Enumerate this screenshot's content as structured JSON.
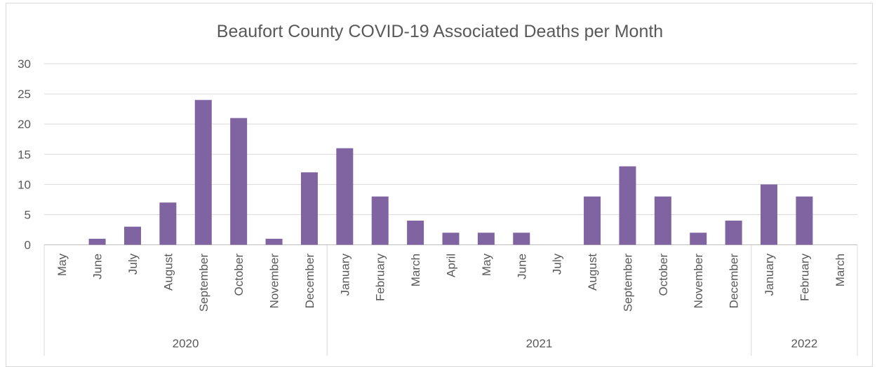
{
  "chart_data": {
    "type": "bar",
    "title": "Beaufort County COVID-19 Associated Deaths per Month",
    "xlabel": "",
    "ylabel": "",
    "ylim": [
      0,
      30
    ],
    "yticks": [
      "0",
      "5",
      "10",
      "15",
      "20",
      "25",
      "30"
    ],
    "grid": true,
    "legend": "none",
    "bar_color": "#8064a2",
    "categories": [
      "May",
      "June",
      "July",
      "August",
      "September",
      "October",
      "November",
      "December",
      "January",
      "February",
      "March",
      "April",
      "May",
      "June",
      "July",
      "August",
      "September",
      "October",
      "November",
      "December",
      "January",
      "February",
      "March"
    ],
    "years": [
      {
        "label": "2020",
        "count": 8
      },
      {
        "label": "2021",
        "count": 12
      },
      {
        "label": "2022",
        "count": 3
      }
    ],
    "values": [
      0,
      1,
      3,
      7,
      24,
      21,
      1,
      12,
      16,
      8,
      4,
      2,
      2,
      2,
      0,
      8,
      13,
      8,
      2,
      4,
      10,
      8,
      0
    ]
  }
}
